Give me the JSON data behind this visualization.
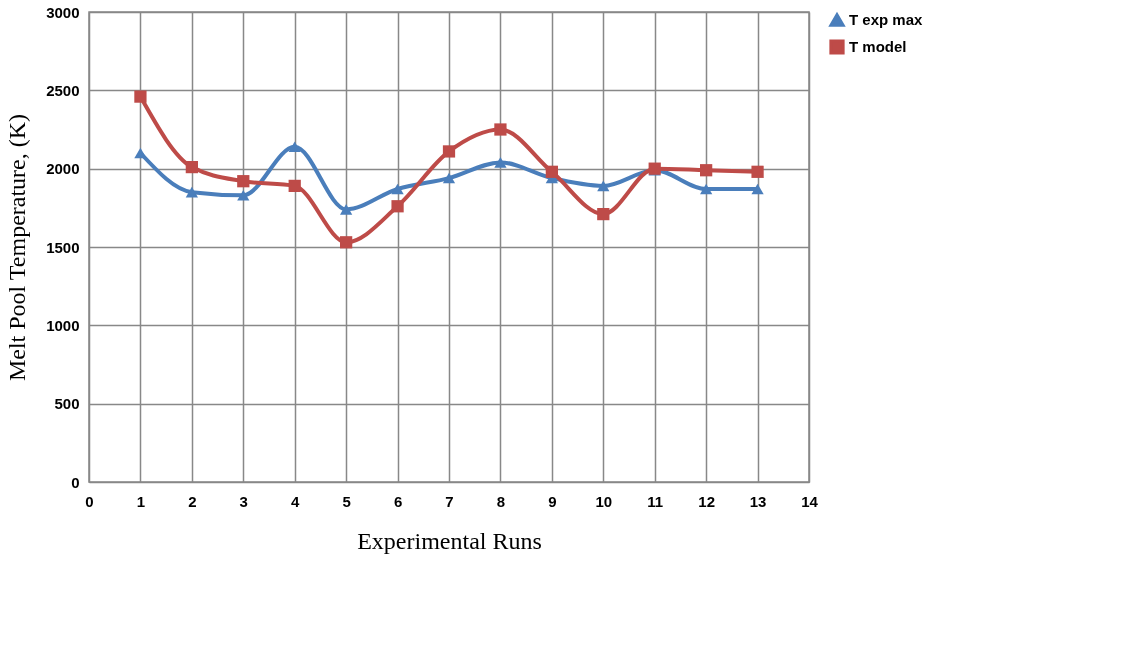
{
  "chart_data": {
    "type": "line",
    "xlabel": "Experimental Runs",
    "ylabel": "Melt Pool Temperature, (K)",
    "x": [
      1,
      2,
      3,
      4,
      5,
      6,
      7,
      8,
      9,
      10,
      11,
      12,
      13
    ],
    "series": [
      {
        "name": "T exp max",
        "color": "#4a7ebb",
        "marker": "triangle",
        "values": [
          2100,
          1850,
          1830,
          2140,
          1740,
          1870,
          1940,
          2040,
          1940,
          1890,
          1990,
          1870,
          1870
        ]
      },
      {
        "name": "T model",
        "color": "#be4b48",
        "marker": "square",
        "values": [
          2460,
          2010,
          1920,
          1890,
          1530,
          1760,
          2110,
          2250,
          1980,
          1710,
          2000,
          1990,
          1980
        ]
      }
    ],
    "xlim": [
      0,
      14
    ],
    "xticks": [
      0,
      1,
      2,
      3,
      4,
      5,
      6,
      7,
      8,
      9,
      10,
      11,
      12,
      13,
      14
    ],
    "ylim": [
      0,
      3000
    ],
    "yticks": [
      0,
      500,
      1000,
      1500,
      2000,
      2500,
      3000
    ],
    "grid": true,
    "legend": "right",
    "line_style": "solid"
  }
}
